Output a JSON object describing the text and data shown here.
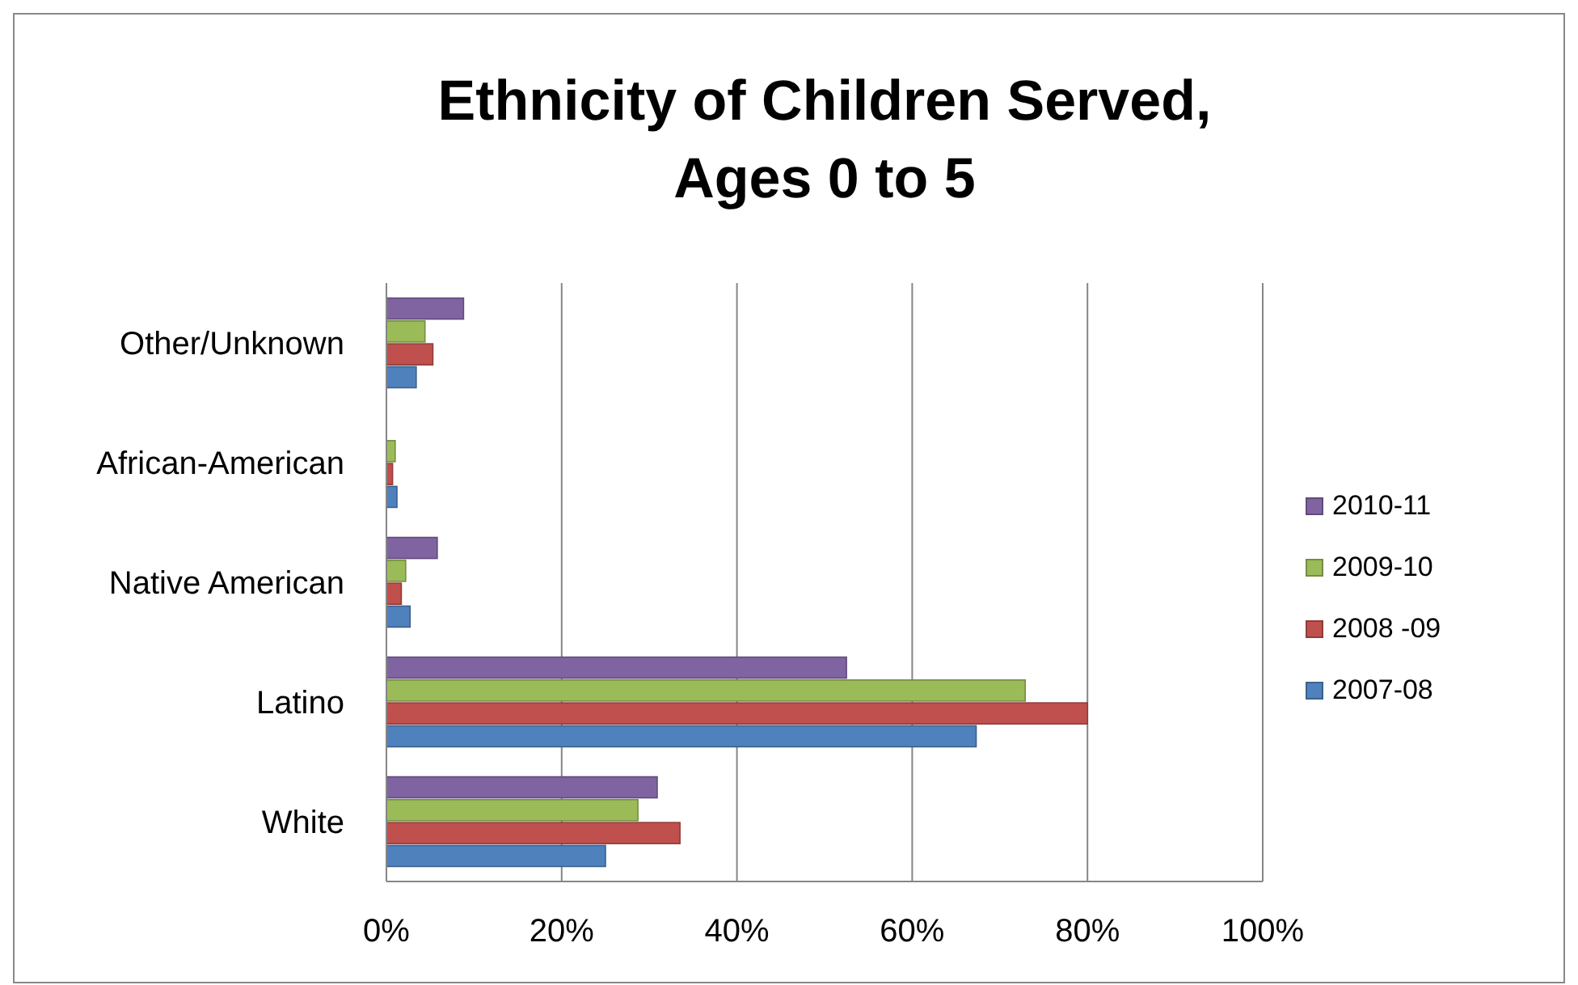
{
  "chart_data": {
    "type": "bar",
    "orientation": "horizontal",
    "title": "Ethnicity of Children Served, Ages 0 to 5",
    "categories": [
      "Other/Unknown",
      "African-American",
      "Native American",
      "Latino",
      "White"
    ],
    "series": [
      {
        "name": "2007-08",
        "color": "#4f81bd",
        "values": [
          3.4,
          1.2,
          2.7,
          67.3,
          25
        ]
      },
      {
        "name": "2008 -09",
        "color": "#c0504d",
        "values": [
          5.3,
          0.7,
          1.7,
          80,
          33.5
        ]
      },
      {
        "name": "2009-10",
        "color": "#9bbb59",
        "values": [
          4.4,
          1.0,
          2.2,
          72.9,
          28.7
        ]
      },
      {
        "name": "2010-11",
        "color": "#8064a2",
        "values": [
          8.8,
          0,
          5.8,
          52.5,
          30.9
        ]
      }
    ],
    "xlim": [
      0,
      100
    ],
    "xticks": [
      {
        "value": 0,
        "label": "0%"
      },
      {
        "value": 20,
        "label": "20%"
      },
      {
        "value": 40,
        "label": "40%"
      },
      {
        "value": 60,
        "label": "60%"
      },
      {
        "value": 80,
        "label": "80%"
      },
      {
        "value": 100,
        "label": "100%"
      }
    ],
    "grid": "x",
    "legend": "right"
  }
}
